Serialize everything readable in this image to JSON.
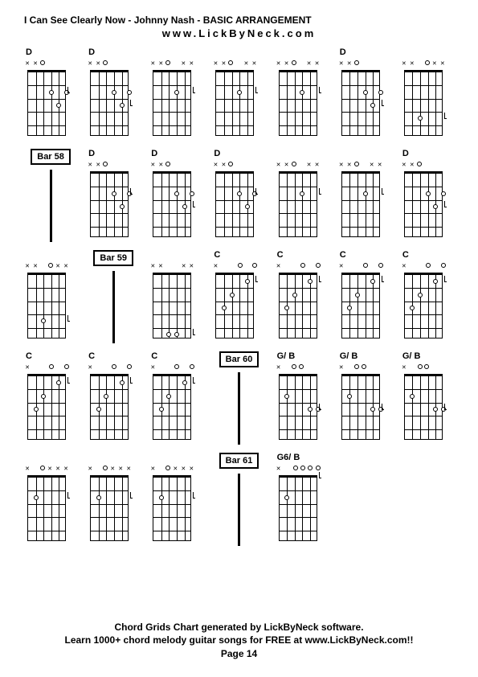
{
  "title": "I Can See Clearly Now - Johnny Nash - BASIC ARRANGEMENT",
  "subtitle": "www.LickByNeck.com",
  "footer": {
    "line1": "Chord Grids Chart generated by LickByNeck software.",
    "line2": "Learn 1000+ chord melody guitar songs for FREE at www.LickByNeck.com!!",
    "line3": "Page 14"
  },
  "rows": [
    [
      {
        "type": "chord",
        "label": "D",
        "markers": [
          "x",
          "x",
          "o",
          "",
          "",
          ""
        ],
        "dots": [
          [
            3,
            2
          ],
          [
            4,
            3
          ],
          [
            5,
            2
          ]
        ],
        "tick": [
          5,
          2
        ]
      },
      {
        "type": "chord",
        "label": "D",
        "markers": [
          "x",
          "x",
          "o",
          "",
          "",
          ""
        ],
        "dots": [
          [
            3,
            2
          ],
          [
            4,
            3
          ],
          [
            5,
            2
          ]
        ],
        "tick": [
          4,
          3
        ]
      },
      {
        "type": "chord",
        "label": "",
        "markers": [
          "x",
          "x",
          "o",
          "",
          "x",
          "x"
        ],
        "dots": [
          [
            3,
            2
          ]
        ],
        "tick": [
          3,
          2
        ]
      },
      {
        "type": "chord",
        "label": "",
        "markers": [
          "x",
          "x",
          "o",
          "",
          "x",
          "x"
        ],
        "dots": [
          [
            3,
            2
          ]
        ],
        "tick": [
          3,
          2
        ]
      },
      {
        "type": "chord",
        "label": "",
        "markers": [
          "x",
          "x",
          "o",
          "",
          "x",
          "x"
        ],
        "dots": [
          [
            3,
            2
          ]
        ],
        "tick": [
          3,
          2
        ]
      },
      {
        "type": "chord",
        "label": "D",
        "markers": [
          "x",
          "x",
          "o",
          "",
          "",
          ""
        ],
        "dots": [
          [
            3,
            2
          ],
          [
            4,
            3
          ],
          [
            5,
            2
          ]
        ],
        "tick": [
          4,
          3
        ]
      },
      {
        "type": "chord",
        "label": "",
        "markers": [
          "x",
          "x",
          "",
          "o",
          "x",
          "x"
        ],
        "dots": [
          [
            2,
            4
          ]
        ],
        "tick": [
          2,
          4
        ]
      }
    ],
    [
      {
        "type": "bar",
        "label": "Bar 58"
      },
      {
        "type": "chord",
        "label": "D",
        "markers": [
          "x",
          "x",
          "o",
          "",
          "",
          ""
        ],
        "dots": [
          [
            3,
            2
          ],
          [
            4,
            3
          ],
          [
            5,
            2
          ]
        ],
        "tick": [
          5,
          2
        ]
      },
      {
        "type": "chord",
        "label": "D",
        "markers": [
          "x",
          "x",
          "o",
          "",
          "",
          ""
        ],
        "dots": [
          [
            3,
            2
          ],
          [
            4,
            3
          ],
          [
            5,
            2
          ]
        ],
        "tick": [
          4,
          3
        ]
      },
      {
        "type": "chord",
        "label": "D",
        "markers": [
          "x",
          "x",
          "o",
          "",
          "",
          ""
        ],
        "dots": [
          [
            3,
            2
          ],
          [
            4,
            3
          ],
          [
            5,
            2
          ]
        ],
        "tick": [
          5,
          2
        ]
      },
      {
        "type": "chord",
        "label": "",
        "markers": [
          "x",
          "x",
          "o",
          "",
          "x",
          "x"
        ],
        "dots": [
          [
            3,
            2
          ]
        ],
        "tick": [
          3,
          2
        ]
      },
      {
        "type": "chord",
        "label": "",
        "markers": [
          "x",
          "x",
          "o",
          "",
          "x",
          "x"
        ],
        "dots": [
          [
            3,
            2
          ]
        ],
        "tick": [
          3,
          2
        ]
      },
      {
        "type": "chord",
        "label": "D",
        "markers": [
          "x",
          "x",
          "o",
          "",
          "",
          ""
        ],
        "dots": [
          [
            3,
            2
          ],
          [
            4,
            3
          ],
          [
            5,
            2
          ]
        ],
        "tick": [
          4,
          3
        ]
      }
    ],
    [
      {
        "type": "chord",
        "label": "",
        "markers": [
          "x",
          "x",
          "",
          "o",
          "x",
          "x"
        ],
        "dots": [
          [
            2,
            4
          ]
        ],
        "tick": [
          2,
          4
        ]
      },
      {
        "type": "bar",
        "label": "Bar 59"
      },
      {
        "type": "chord",
        "label": "",
        "markers": [
          "x",
          "x",
          "",
          "",
          "x",
          "x"
        ],
        "dots": [
          [
            2,
            5
          ],
          [
            3,
            5
          ]
        ],
        "tick": [
          3,
          5
        ]
      },
      {
        "type": "chord",
        "label": "C",
        "markers": [
          "x",
          "",
          "",
          "o",
          "",
          "o"
        ],
        "dots": [
          [
            1,
            3
          ],
          [
            2,
            2
          ],
          [
            4,
            1
          ]
        ],
        "tick": [
          4,
          1
        ]
      },
      {
        "type": "chord",
        "label": "C",
        "markers": [
          "x",
          "",
          "",
          "o",
          "",
          "o"
        ],
        "dots": [
          [
            1,
            3
          ],
          [
            2,
            2
          ],
          [
            4,
            1
          ]
        ],
        "tick": [
          4,
          1
        ]
      },
      {
        "type": "chord",
        "label": "C",
        "markers": [
          "x",
          "",
          "",
          "o",
          "",
          "o"
        ],
        "dots": [
          [
            1,
            3
          ],
          [
            2,
            2
          ],
          [
            4,
            1
          ]
        ],
        "tick": [
          4,
          1
        ]
      },
      {
        "type": "chord",
        "label": "C",
        "markers": [
          "x",
          "",
          "",
          "o",
          "",
          "o"
        ],
        "dots": [
          [
            1,
            3
          ],
          [
            2,
            2
          ],
          [
            4,
            1
          ]
        ],
        "tick": [
          4,
          1
        ]
      }
    ],
    [
      {
        "type": "chord",
        "label": "C",
        "markers": [
          "x",
          "",
          "",
          "o",
          "",
          "o"
        ],
        "dots": [
          [
            1,
            3
          ],
          [
            2,
            2
          ],
          [
            4,
            1
          ]
        ],
        "tick": [
          4,
          1
        ]
      },
      {
        "type": "chord",
        "label": "C",
        "markers": [
          "x",
          "",
          "",
          "o",
          "",
          "o"
        ],
        "dots": [
          [
            1,
            3
          ],
          [
            2,
            2
          ],
          [
            4,
            1
          ]
        ],
        "tick": [
          4,
          1
        ]
      },
      {
        "type": "chord",
        "label": "C",
        "markers": [
          "x",
          "",
          "",
          "o",
          "",
          "o"
        ],
        "dots": [
          [
            1,
            3
          ],
          [
            2,
            2
          ],
          [
            4,
            1
          ]
        ],
        "tick": [
          4,
          1
        ]
      },
      {
        "type": "bar",
        "label": "Bar 60"
      },
      {
        "type": "chord",
        "label": "G/ B",
        "markers": [
          "x",
          "",
          "o",
          "o",
          "",
          ""
        ],
        "dots": [
          [
            1,
            2
          ],
          [
            4,
            3
          ],
          [
            5,
            3
          ]
        ],
        "tick": [
          5,
          3
        ]
      },
      {
        "type": "chord",
        "label": "G/ B",
        "markers": [
          "x",
          "",
          "o",
          "o",
          "",
          ""
        ],
        "dots": [
          [
            1,
            2
          ],
          [
            4,
            3
          ],
          [
            5,
            3
          ]
        ],
        "tick": [
          4,
          3
        ]
      },
      {
        "type": "chord",
        "label": "G/ B",
        "markers": [
          "x",
          "",
          "o",
          "o",
          "",
          ""
        ],
        "dots": [
          [
            1,
            2
          ],
          [
            4,
            3
          ],
          [
            5,
            3
          ]
        ],
        "tick": [
          5,
          3
        ]
      }
    ],
    [
      {
        "type": "chord",
        "label": "",
        "markers": [
          "x",
          "",
          "o",
          "x",
          "x",
          "x"
        ],
        "dots": [
          [
            1,
            2
          ]
        ],
        "tick": [
          1,
          2
        ]
      },
      {
        "type": "chord",
        "label": "",
        "markers": [
          "x",
          "",
          "o",
          "x",
          "x",
          "x"
        ],
        "dots": [
          [
            1,
            2
          ]
        ],
        "tick": [
          1,
          2
        ]
      },
      {
        "type": "chord",
        "label": "",
        "markers": [
          "x",
          "",
          "o",
          "x",
          "x",
          "x"
        ],
        "dots": [
          [
            1,
            2
          ]
        ],
        "tick": [
          1,
          2
        ]
      },
      {
        "type": "bar",
        "label": "Bar 61"
      },
      {
        "type": "chord",
        "label": "G6/ B",
        "markers": [
          "x",
          "",
          "o",
          "o",
          "o",
          "o"
        ],
        "dots": [
          [
            1,
            2
          ]
        ],
        "tick": [
          5,
          0
        ]
      }
    ]
  ],
  "style": {
    "frets": 5,
    "strings": 6,
    "fretboard_width": 48,
    "fretboard_height": 82,
    "string_spacing": 9.6,
    "fret_spacing": 16.4,
    "colors": {
      "background": "#ffffff",
      "line": "#000000",
      "text": "#000000"
    },
    "fontsize": {
      "title": 12,
      "subtitle": 13,
      "chord_label": 11,
      "footer": 12
    }
  }
}
